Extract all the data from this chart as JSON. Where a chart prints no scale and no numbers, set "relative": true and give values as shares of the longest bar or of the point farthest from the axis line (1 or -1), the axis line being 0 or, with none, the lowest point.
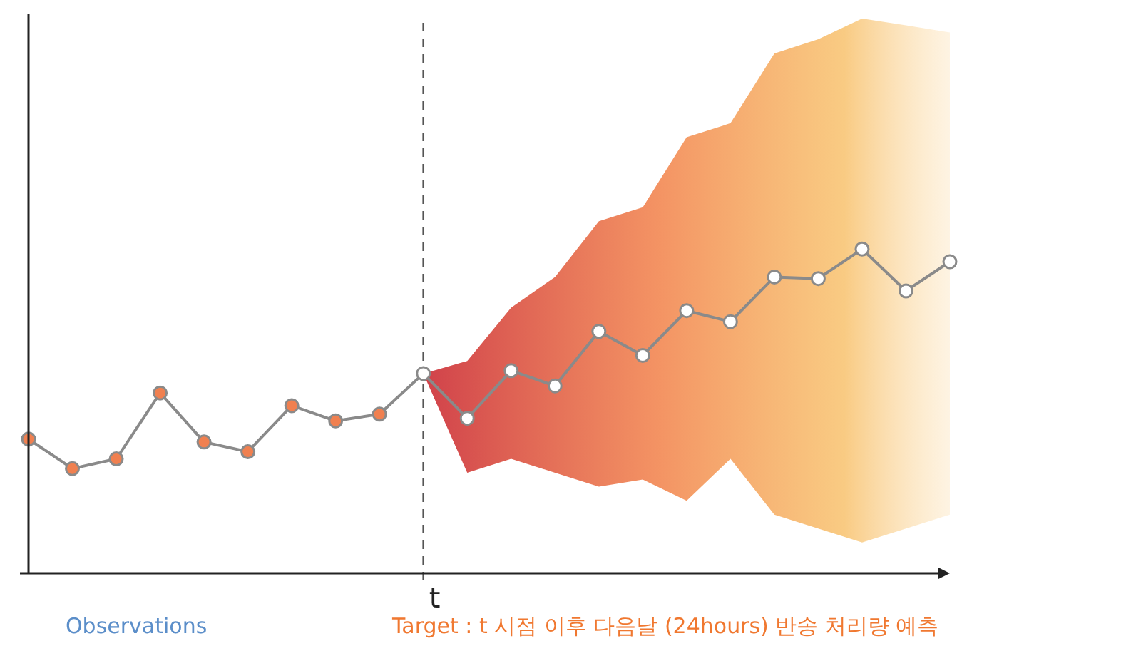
{
  "chart_data": {
    "type": "line",
    "relative": true,
    "categories": [
      null,
      null,
      null,
      null,
      null,
      null,
      null,
      null,
      null,
      null,
      null,
      null,
      null,
      null,
      null,
      null,
      null,
      null,
      null,
      null,
      null,
      null
    ],
    "series": [
      {
        "color": "#8a8a8a",
        "colors": [
          "#f08050",
          "#f08050",
          "#f08050",
          "#f08050",
          "#f08050",
          "#f08050",
          "#f08050",
          "#f08050",
          "#f08050",
          "#ffffff",
          "#ffffff",
          "#ffffff",
          "#ffffff",
          "#ffffff",
          "#ffffff",
          "#ffffff",
          "#ffffff",
          "#ffffff",
          "#ffffff",
          "#ffffff",
          "#ffffff",
          "#ffffff"
        ],
        "values": [
          0.414,
          0.323,
          0.353,
          0.556,
          0.405,
          0.375,
          0.517,
          0.47,
          0.491,
          0.616,
          0.478,
          0.625,
          0.578,
          0.746,
          0.672,
          0.81,
          0.776,
          0.914,
          0.909,
          1,
          0.871,
          0.961
        ],
        "upper": [
          null,
          null,
          null,
          null,
          null,
          null,
          null,
          null,
          null,
          0.616,
          0.655,
          0.819,
          0.914,
          1.086,
          1.129,
          1.345,
          1.388,
          1.603,
          1.647,
          1.711,
          1.69,
          1.668
        ],
        "lower": [
          null,
          null,
          null,
          null,
          null,
          null,
          null,
          null,
          null,
          0.616,
          0.31,
          0.353,
          0.31,
          0.267,
          0.289,
          0.224,
          0.353,
          0.181,
          0.138,
          0.095,
          0.138,
          0.181
        ]
      }
    ],
    "marker": "circle",
    "annotations": [
      "t",
      "Observations",
      "Target : t 시점 이후 다음날 (24hours) 반송 처리량 예측"
    ]
  }
}
